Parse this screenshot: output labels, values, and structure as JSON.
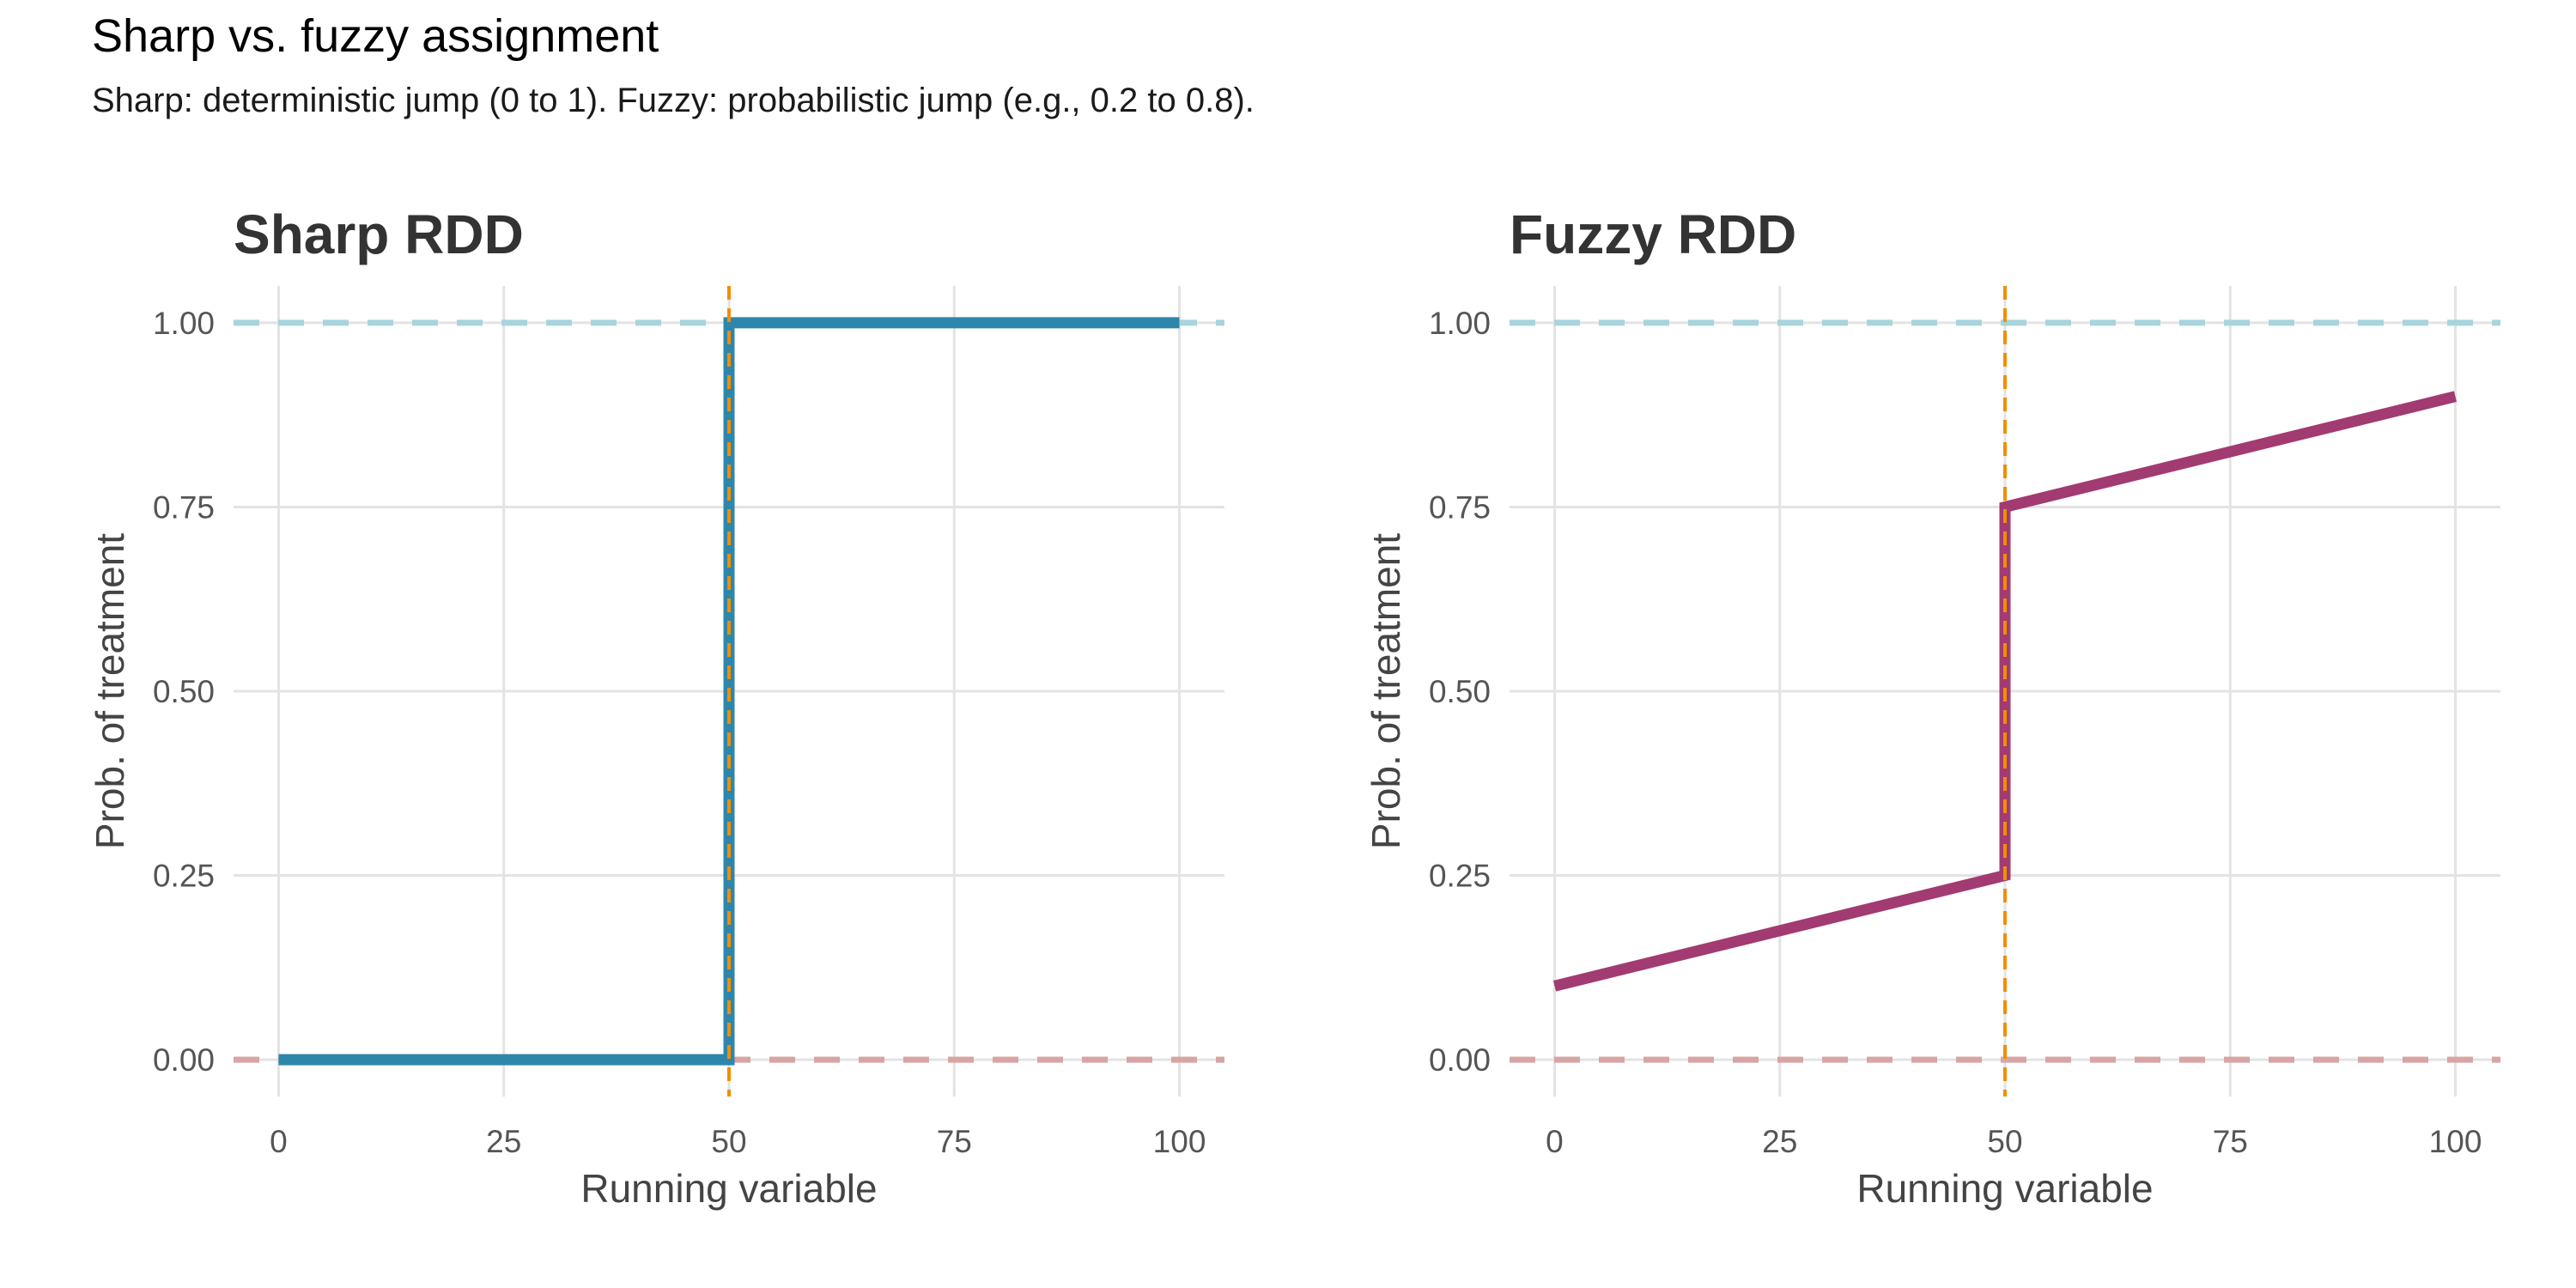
{
  "figure": {
    "title": "Sharp vs. fuzzy assignment",
    "subtitle": "Sharp: deterministic jump (0 to 1). Fuzzy: probabilistic jump (e.g., 0.2 to 0.8)."
  },
  "chart_data": [
    {
      "type": "line",
      "title": "Sharp RDD",
      "xlabel": "Running variable",
      "ylabel": "Prob. of treatment",
      "xlim": [
        -5,
        105
      ],
      "ylim": [
        -0.05,
        1.05
      ],
      "x_ticks": [
        0,
        25,
        50,
        75,
        100
      ],
      "y_ticks": [
        0.0,
        0.25,
        0.5,
        0.75,
        1.0
      ],
      "y_tick_labels": [
        "0.00",
        "0.25",
        "0.50",
        "0.75",
        "1.00"
      ],
      "grid": true,
      "cutoff": 50,
      "reference_lines": [
        {
          "y": 1.0,
          "color": "#a8d4dc"
        },
        {
          "y": 0.0,
          "color": "#d8a4a4"
        }
      ],
      "series": [
        {
          "color": "#2e86ab",
          "x": [
            0,
            50,
            50,
            100
          ],
          "y": [
            0,
            0,
            1,
            1
          ]
        }
      ]
    },
    {
      "type": "line",
      "title": "Fuzzy RDD",
      "xlabel": "Running variable",
      "ylabel": "Prob. of treatment",
      "xlim": [
        -5,
        105
      ],
      "ylim": [
        -0.05,
        1.05
      ],
      "x_ticks": [
        0,
        25,
        50,
        75,
        100
      ],
      "y_ticks": [
        0.0,
        0.25,
        0.5,
        0.75,
        1.0
      ],
      "y_tick_labels": [
        "0.00",
        "0.25",
        "0.50",
        "0.75",
        "1.00"
      ],
      "grid": true,
      "cutoff": 50,
      "reference_lines": [
        {
          "y": 1.0,
          "color": "#a8d4dc"
        },
        {
          "y": 0.0,
          "color": "#d8a4a4"
        }
      ],
      "series": [
        {
          "color": "#a23b72",
          "x": [
            0,
            50,
            50,
            100
          ],
          "y": [
            0.1,
            0.25,
            0.75,
            0.9
          ]
        }
      ]
    }
  ],
  "colors": {
    "cutoff": "#f28e00",
    "grid": "#e3e3e3"
  }
}
